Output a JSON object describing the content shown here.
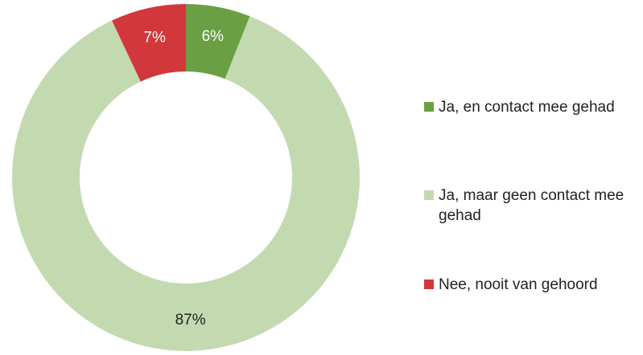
{
  "chart_data": {
    "type": "pie",
    "categories": [
      "Ja, en contact mee gehad",
      "Ja, maar geen contact mee gehad",
      "Nee, nooit van gehoord"
    ],
    "values": [
      6,
      87,
      7
    ],
    "value_labels": [
      "6%",
      "87%",
      "7%"
    ],
    "colors": [
      "#6aa043",
      "#c3dab1",
      "#d2373c"
    ],
    "legend": "right"
  }
}
